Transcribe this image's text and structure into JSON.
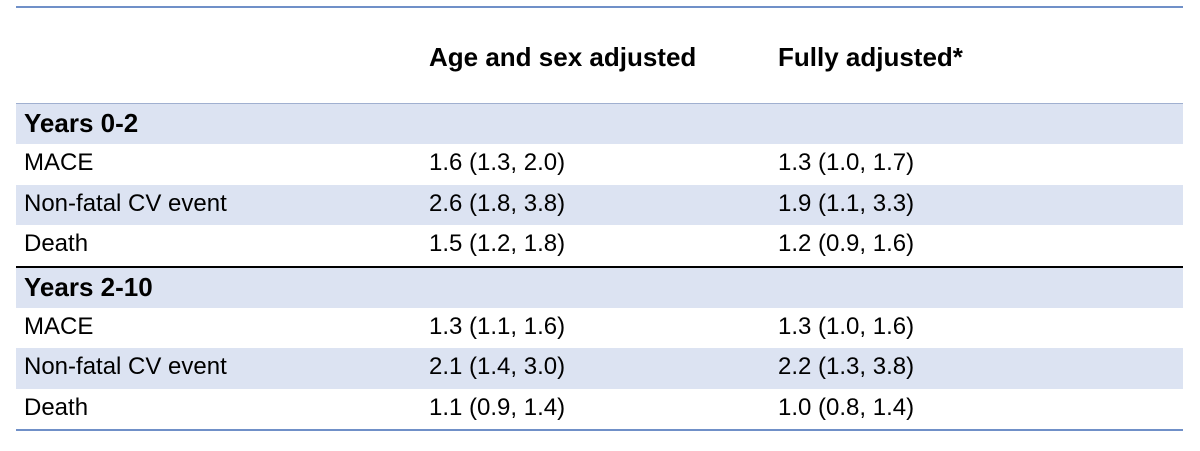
{
  "header": {
    "col1": "",
    "col2": "Age and sex adjusted",
    "col3": "Fully adjusted*"
  },
  "sections": [
    {
      "title": "Years 0-2",
      "rows": [
        {
          "label": "MACE",
          "age_sex": "1.6 (1.3, 2.0)",
          "fully": "1.3 (1.0, 1.7)"
        },
        {
          "label": "Non-fatal CV event",
          "age_sex": "2.6 (1.8, 3.8)",
          "fully": "1.9 (1.1, 3.3)"
        },
        {
          "label": "Death",
          "age_sex": "1.5 (1.2, 1.8)",
          "fully": "1.2 (0.9, 1.6)"
        }
      ]
    },
    {
      "title": "Years 2-10",
      "rows": [
        {
          "label": "MACE",
          "age_sex": "1.3 (1.1, 1.6)",
          "fully": "1.3 (1.0, 1.6)"
        },
        {
          "label": "Non-fatal CV event",
          "age_sex": "2.1 (1.4, 3.0)",
          "fully": "2.2 (1.3, 3.8)"
        },
        {
          "label": "Death",
          "age_sex": "1.1 (0.9, 1.4)",
          "fully": "1.0 (0.8, 1.4)"
        }
      ]
    }
  ],
  "colors": {
    "row_shade": "#dce3f2",
    "rule": "#7090c8"
  }
}
